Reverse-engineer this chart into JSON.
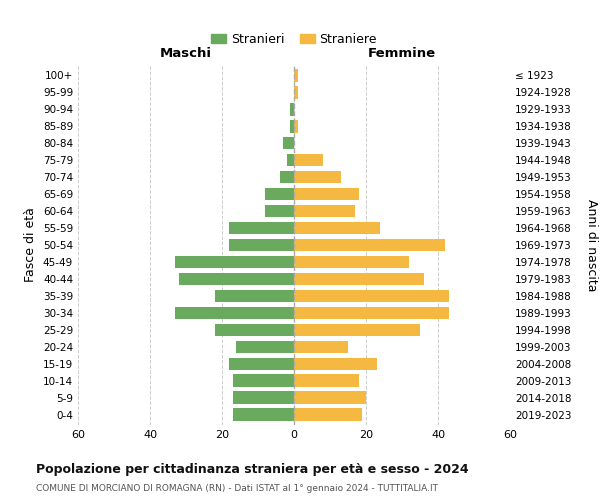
{
  "age_groups": [
    "0-4",
    "5-9",
    "10-14",
    "15-19",
    "20-24",
    "25-29",
    "30-34",
    "35-39",
    "40-44",
    "45-49",
    "50-54",
    "55-59",
    "60-64",
    "65-69",
    "70-74",
    "75-79",
    "80-84",
    "85-89",
    "90-94",
    "95-99",
    "100+"
  ],
  "birth_years": [
    "2019-2023",
    "2014-2018",
    "2009-2013",
    "2004-2008",
    "1999-2003",
    "1994-1998",
    "1989-1993",
    "1984-1988",
    "1979-1983",
    "1974-1978",
    "1969-1973",
    "1964-1968",
    "1959-1963",
    "1954-1958",
    "1949-1953",
    "1944-1948",
    "1939-1943",
    "1934-1938",
    "1929-1933",
    "1924-1928",
    "≤ 1923"
  ],
  "males": [
    17,
    17,
    17,
    18,
    16,
    22,
    33,
    22,
    32,
    33,
    18,
    18,
    8,
    8,
    4,
    2,
    3,
    1,
    1,
    0,
    0
  ],
  "females": [
    19,
    20,
    18,
    23,
    15,
    35,
    43,
    43,
    36,
    32,
    42,
    24,
    17,
    18,
    13,
    8,
    0,
    1,
    0,
    1,
    1
  ],
  "male_color": "#6aaa5e",
  "female_color": "#f5b942",
  "male_label": "Stranieri",
  "female_label": "Straniere",
  "title": "Popolazione per cittadinanza straniera per età e sesso - 2024",
  "subtitle": "COMUNE DI MORCIANO DI ROMAGNA (RN) - Dati ISTAT al 1° gennaio 2024 - TUTTITALIA.IT",
  "ylabel_left": "Fasce di età",
  "ylabel_right": "Anni di nascita",
  "xlabel_maschi": "Maschi",
  "xlabel_femmine": "Femmine",
  "xlim": 60,
  "background_color": "#ffffff",
  "grid_color": "#cccccc"
}
